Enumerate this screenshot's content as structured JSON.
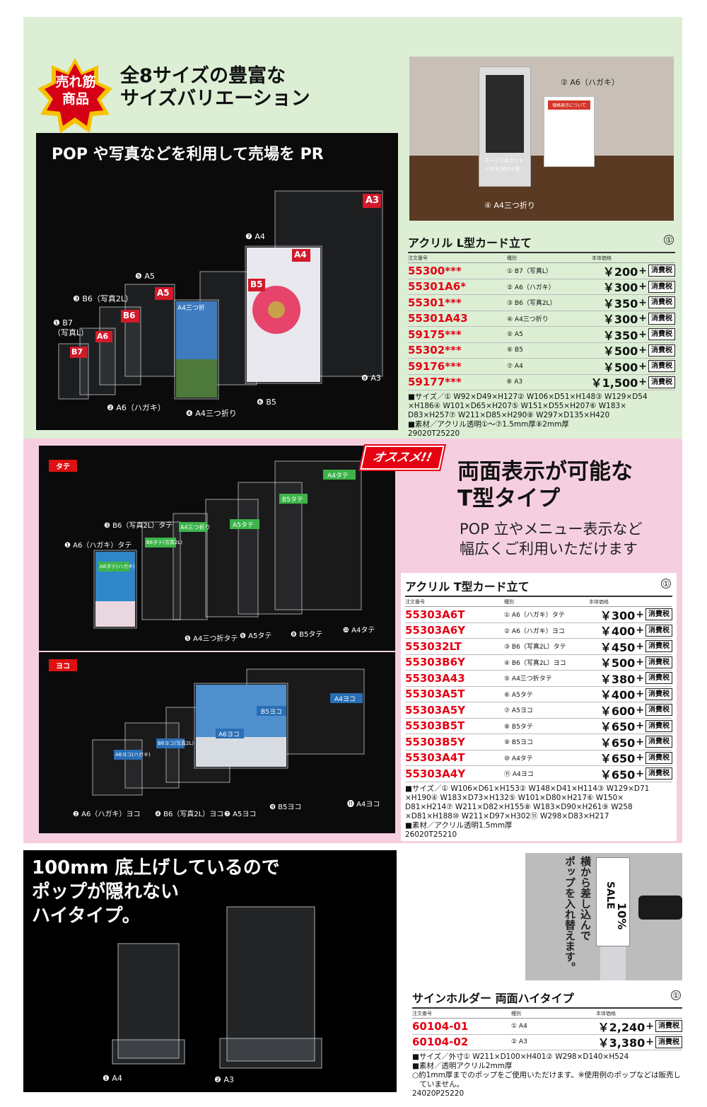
{
  "section1": {
    "badge": [
      "売れ筋",
      "商品"
    ],
    "headline": [
      "全8サイズの豊富な",
      "サイズバリエーション"
    ],
    "photo_title": "POP や写真などを利用して売場を PR",
    "product_labels": [
      "A3",
      "A4",
      "B5",
      "A4三つ折",
      "A5",
      "B6",
      "A6",
      "B7"
    ],
    "callouts": [
      "❶ B7\n（写真L）",
      "❸ B6（写真2L）",
      "❺ A5",
      "❼ A4",
      "❷ A6（ハガキ）",
      "❹ A4三つ折り",
      "❻ B5",
      "❽ A3"
    ],
    "inset_callouts": [
      "② A6（ハガキ）",
      "④ A4三つ折り"
    ],
    "inset_sign_text": [
      "価格表示について",
      "スーツ７点セット",
      "＝¥19,800＋税"
    ],
    "table": {
      "title": "アクリル L型カード立て",
      "circ": "①",
      "head": [
        "注文番号",
        "種別",
        "本体価格"
      ],
      "rows": [
        {
          "code": "55300***",
          "type": "① B7（写真L）",
          "price": "￥200"
        },
        {
          "code": "55301A6*",
          "type": "② A6（ハガキ）",
          "price": "￥300"
        },
        {
          "code": "55301***",
          "type": "③ B6（写真2L）",
          "price": "￥350"
        },
        {
          "code": "55301A43",
          "type": "④ A4三つ折り",
          "price": "￥300"
        },
        {
          "code": "59175***",
          "type": "⑤ A5",
          "price": "￥350"
        },
        {
          "code": "55302***",
          "type": "⑥ B5",
          "price": "￥500"
        },
        {
          "code": "59176***",
          "type": "⑦ A4",
          "price": "￥500"
        },
        {
          "code": "59177***",
          "type": "⑧ A3",
          "price": "￥1,500"
        }
      ],
      "tax": "消費税",
      "spec": [
        "■サイズ／① W92×D49×H127② W106×D51×H148③ W129×D54",
        "×H186④ W101×D65×H207⑤ W151×D55×H207⑥ W183×",
        "D83×H257⑦ W211×D85×H290⑧ W297×D135×H420",
        "■素材／アクリル透明①〜⑦1.5mm厚⑧2mm厚",
        "29020T25220"
      ]
    }
  },
  "section2": {
    "tag_tate": "タテ",
    "tag_yoko": "ヨコ",
    "osusume": "オススメ!!",
    "headline": [
      "両面表示が可能な",
      "T型タイプ"
    ],
    "subline": [
      "POP 立やメニュー表示など",
      "幅広くご利用いただけます"
    ],
    "tate_labels": [
      "A4タテ",
      "B5タテ",
      "A5タテ",
      "A4三つ折り",
      "B6タテ(写真2L)",
      "A6タテ(ハガキ)"
    ],
    "tate_callouts": [
      "❸ B6（写真2L）タテ",
      "❶ A6（ハガキ）タテ",
      "❺ A4三つ折タテ",
      "❻ A5タテ",
      "❽ B5タテ",
      "❿ A4タテ"
    ],
    "yoko_labels": [
      "B5ヨコ",
      "A4ヨコ",
      "A6ヨコ",
      "B6ヨコ(写真2L)",
      "A6ヨコ(ハガキ)"
    ],
    "yoko_callouts": [
      "❷ A6（ハガキ）ヨコ",
      "❹ B6（写真2L）ヨコ",
      "❼ A5ヨコ",
      "❾ B5ヨコ",
      "⓫ A4ヨコ"
    ],
    "table": {
      "title": "アクリル T型カード立て",
      "circ": "①",
      "head": [
        "注文番号",
        "種別",
        "本体価格"
      ],
      "rows": [
        {
          "code": "55303A6T",
          "type": "① A6（ハガキ）タテ",
          "price": "￥300"
        },
        {
          "code": "55303A6Y",
          "type": "② A6（ハガキ）ヨコ",
          "price": "￥400"
        },
        {
          "code": "553032LT",
          "type": "③ B6（写真2L）タテ",
          "price": "￥450"
        },
        {
          "code": "55303B6Y",
          "type": "④ B6（写真2L）ヨコ",
          "price": "￥500"
        },
        {
          "code": "55303A43",
          "type": "⑤ A4三つ折タテ",
          "price": "￥380"
        },
        {
          "code": "55303A5T",
          "type": "⑥ A5タテ",
          "price": "￥400"
        },
        {
          "code": "55303A5Y",
          "type": "⑦ A5ヨコ",
          "price": "￥600"
        },
        {
          "code": "55303B5T",
          "type": "⑧ B5タテ",
          "price": "￥650"
        },
        {
          "code": "55303B5Y",
          "type": "⑨ B5ヨコ",
          "price": "￥650"
        },
        {
          "code": "55303A4T",
          "type": "⑩ A4タテ",
          "price": "￥650"
        },
        {
          "code": "55303A4Y",
          "type": "⑪ A4ヨコ",
          "price": "￥650"
        }
      ],
      "tax": "消費税",
      "spec": [
        "■サイズ／① W106×D61×H153② W148×D41×H114③ W129×D71",
        "×H190④ W183×D73×H132⑤ W101×D80×H217⑥ W150×",
        "D81×H214⑦ W211×D82×H155⑧ W183×D90×H261⑨ W258",
        "×D81×H188⑩ W211×D97×H302⑪ W298×D83×H217",
        "■素材／アクリル透明1.5mm厚",
        "26020T25210"
      ]
    }
  },
  "section3": {
    "headline": [
      "100mm 底上げしているので",
      "ポップが隠れない",
      "ハイタイプ。"
    ],
    "callouts": [
      "❶ A4",
      "❷ A3"
    ],
    "inset_text": [
      "横から差し込んで",
      "ポップを入れ替えます。"
    ],
    "inset_sign": [
      "SALE",
      "10%"
    ],
    "table": {
      "title": "サインホルダー 両面ハイタイプ",
      "circ": "①",
      "head": [
        "注文番号",
        "種別",
        "本体価格"
      ],
      "rows": [
        {
          "code": "60104-01",
          "type": "① A4",
          "price": "￥2,240"
        },
        {
          "code": "60104-02",
          "type": "② A3",
          "price": "￥3,380"
        }
      ],
      "tax": "消費税",
      "spec": [
        "■サイズ／外寸① W211×D100×H401② W298×D140×H524",
        "■素材／透明アクリル2mm厚",
        "○約1mm厚までのポップをご使用いただけます。※使用例のポップなどは販売し",
        "　ていません。",
        "24020P25220"
      ]
    }
  },
  "colors": {
    "green_bg": "#dcefd5",
    "pink_bg": "#f5cfe0",
    "red": "#e60012",
    "green_tag": "#3cb44a",
    "blue_tag": "#2a6fb5"
  }
}
